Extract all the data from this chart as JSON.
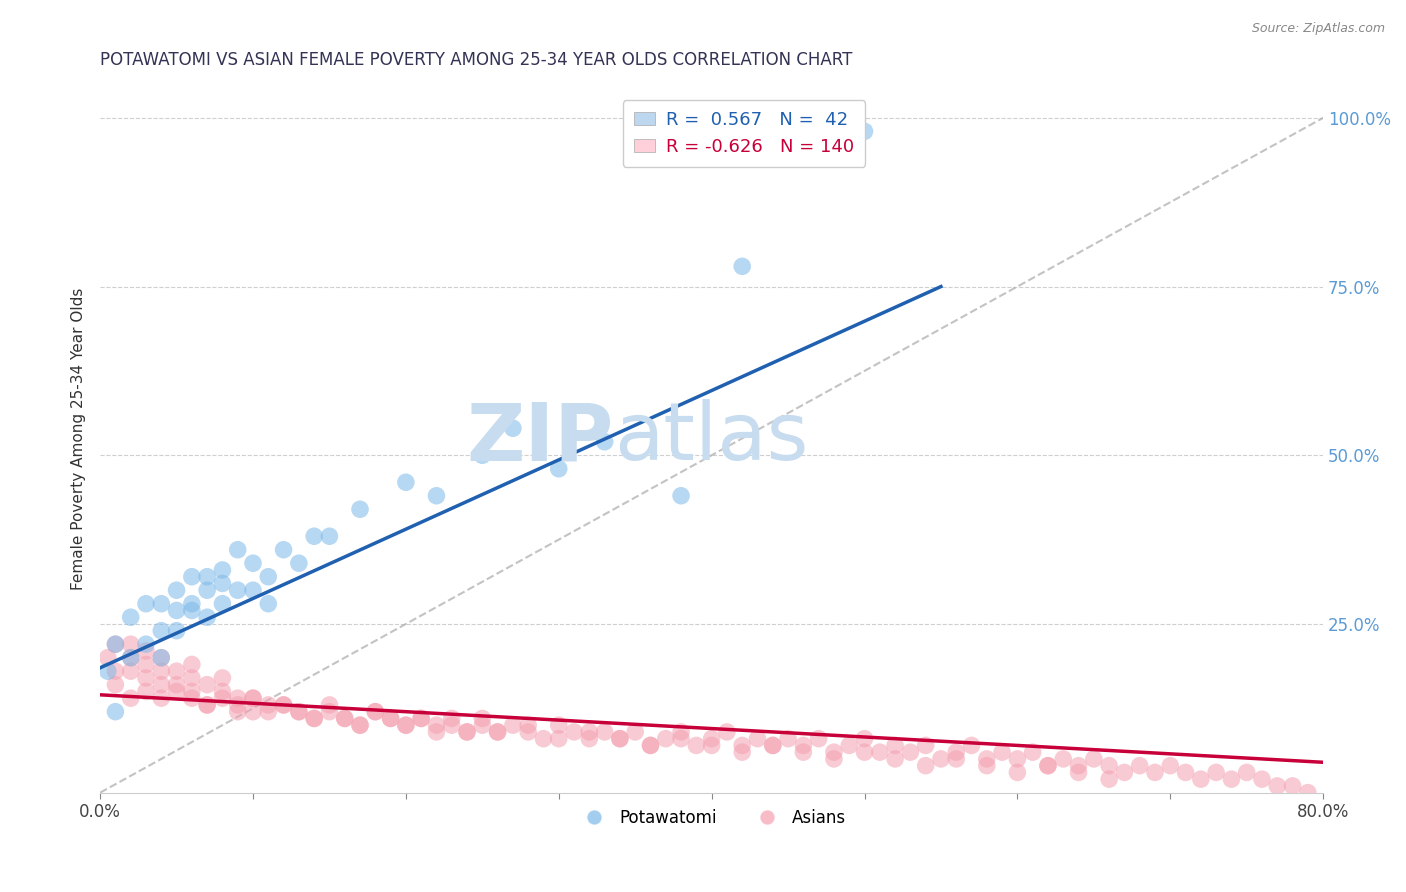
{
  "title": "POTAWATOMI VS ASIAN FEMALE POVERTY AMONG 25-34 YEAR OLDS CORRELATION CHART",
  "source": "Source: ZipAtlas.com",
  "ylabel": "Female Poverty Among 25-34 Year Olds",
  "xlim": [
    0.0,
    0.8
  ],
  "ylim": [
    0.0,
    1.05
  ],
  "legend_r1": "R =  0.567   N =  42",
  "legend_r2": "R = -0.626   N = 140",
  "blue_scatter_color": "#7DB8E8",
  "pink_scatter_color": "#F4A0B0",
  "blue_fill": "#BDD7EE",
  "pink_fill": "#FFD0DA",
  "trend_blue": "#2060B0",
  "trend_pink": "#C8003A",
  "grid_color": "#BBBBBB",
  "ref_line_color": "#AAAAAA",
  "watermark_zip": "ZIP",
  "watermark_atlas": "atlas",
  "watermark_color": "#C8DCF0",
  "potawatomi_x": [
    0.005,
    0.01,
    0.01,
    0.02,
    0.02,
    0.03,
    0.03,
    0.04,
    0.04,
    0.04,
    0.05,
    0.05,
    0.05,
    0.06,
    0.06,
    0.06,
    0.07,
    0.07,
    0.07,
    0.08,
    0.08,
    0.08,
    0.09,
    0.09,
    0.1,
    0.1,
    0.11,
    0.11,
    0.12,
    0.13,
    0.14,
    0.15,
    0.17,
    0.2,
    0.22,
    0.25,
    0.27,
    0.3,
    0.33,
    0.38,
    0.42,
    0.5
  ],
  "potawatomi_y": [
    0.18,
    0.12,
    0.22,
    0.2,
    0.26,
    0.22,
    0.28,
    0.24,
    0.28,
    0.2,
    0.27,
    0.3,
    0.24,
    0.27,
    0.32,
    0.28,
    0.3,
    0.32,
    0.26,
    0.31,
    0.33,
    0.28,
    0.3,
    0.36,
    0.3,
    0.34,
    0.32,
    0.28,
    0.36,
    0.34,
    0.38,
    0.38,
    0.42,
    0.46,
    0.44,
    0.5,
    0.54,
    0.48,
    0.52,
    0.44,
    0.78,
    0.98
  ],
  "asians_x": [
    0.005,
    0.01,
    0.01,
    0.02,
    0.02,
    0.02,
    0.03,
    0.03,
    0.03,
    0.04,
    0.04,
    0.04,
    0.05,
    0.05,
    0.06,
    0.06,
    0.06,
    0.07,
    0.07,
    0.08,
    0.08,
    0.09,
    0.09,
    0.1,
    0.1,
    0.11,
    0.12,
    0.13,
    0.14,
    0.15,
    0.16,
    0.17,
    0.18,
    0.19,
    0.2,
    0.21,
    0.22,
    0.23,
    0.24,
    0.25,
    0.26,
    0.27,
    0.28,
    0.29,
    0.3,
    0.31,
    0.32,
    0.33,
    0.34,
    0.35,
    0.36,
    0.37,
    0.38,
    0.39,
    0.4,
    0.41,
    0.42,
    0.43,
    0.44,
    0.45,
    0.46,
    0.47,
    0.48,
    0.49,
    0.5,
    0.51,
    0.52,
    0.53,
    0.54,
    0.55,
    0.56,
    0.57,
    0.58,
    0.59,
    0.6,
    0.61,
    0.62,
    0.63,
    0.64,
    0.65,
    0.66,
    0.67,
    0.68,
    0.69,
    0.7,
    0.71,
    0.72,
    0.73,
    0.74,
    0.75,
    0.76,
    0.77,
    0.78,
    0.79,
    0.01,
    0.02,
    0.03,
    0.04,
    0.05,
    0.06,
    0.07,
    0.08,
    0.09,
    0.1,
    0.11,
    0.12,
    0.13,
    0.14,
    0.15,
    0.16,
    0.17,
    0.18,
    0.19,
    0.2,
    0.21,
    0.22,
    0.23,
    0.24,
    0.25,
    0.26,
    0.28,
    0.3,
    0.32,
    0.34,
    0.36,
    0.38,
    0.4,
    0.42,
    0.44,
    0.46,
    0.48,
    0.5,
    0.52,
    0.54,
    0.56,
    0.58,
    0.6,
    0.62,
    0.64,
    0.66
  ],
  "asians_y": [
    0.2,
    0.18,
    0.22,
    0.2,
    0.18,
    0.22,
    0.19,
    0.17,
    0.21,
    0.18,
    0.16,
    0.2,
    0.18,
    0.15,
    0.17,
    0.15,
    0.19,
    0.16,
    0.13,
    0.15,
    0.17,
    0.14,
    0.12,
    0.14,
    0.12,
    0.13,
    0.13,
    0.12,
    0.11,
    0.12,
    0.11,
    0.1,
    0.12,
    0.11,
    0.1,
    0.11,
    0.1,
    0.11,
    0.09,
    0.1,
    0.09,
    0.1,
    0.09,
    0.08,
    0.1,
    0.09,
    0.08,
    0.09,
    0.08,
    0.09,
    0.07,
    0.08,
    0.09,
    0.07,
    0.08,
    0.09,
    0.07,
    0.08,
    0.07,
    0.08,
    0.07,
    0.08,
    0.06,
    0.07,
    0.08,
    0.06,
    0.07,
    0.06,
    0.07,
    0.05,
    0.06,
    0.07,
    0.05,
    0.06,
    0.05,
    0.06,
    0.04,
    0.05,
    0.04,
    0.05,
    0.04,
    0.03,
    0.04,
    0.03,
    0.04,
    0.03,
    0.02,
    0.03,
    0.02,
    0.03,
    0.02,
    0.01,
    0.01,
    0.0,
    0.16,
    0.14,
    0.15,
    0.14,
    0.16,
    0.14,
    0.13,
    0.14,
    0.13,
    0.14,
    0.12,
    0.13,
    0.12,
    0.11,
    0.13,
    0.11,
    0.1,
    0.12,
    0.11,
    0.1,
    0.11,
    0.09,
    0.1,
    0.09,
    0.11,
    0.09,
    0.1,
    0.08,
    0.09,
    0.08,
    0.07,
    0.08,
    0.07,
    0.06,
    0.07,
    0.06,
    0.05,
    0.06,
    0.05,
    0.04,
    0.05,
    0.04,
    0.03,
    0.04,
    0.03,
    0.02
  ],
  "blue_trend_x": [
    0.0,
    0.55
  ],
  "blue_trend_y": [
    0.185,
    0.75
  ],
  "pink_trend_x": [
    0.0,
    0.8
  ],
  "pink_trend_y": [
    0.145,
    0.045
  ]
}
